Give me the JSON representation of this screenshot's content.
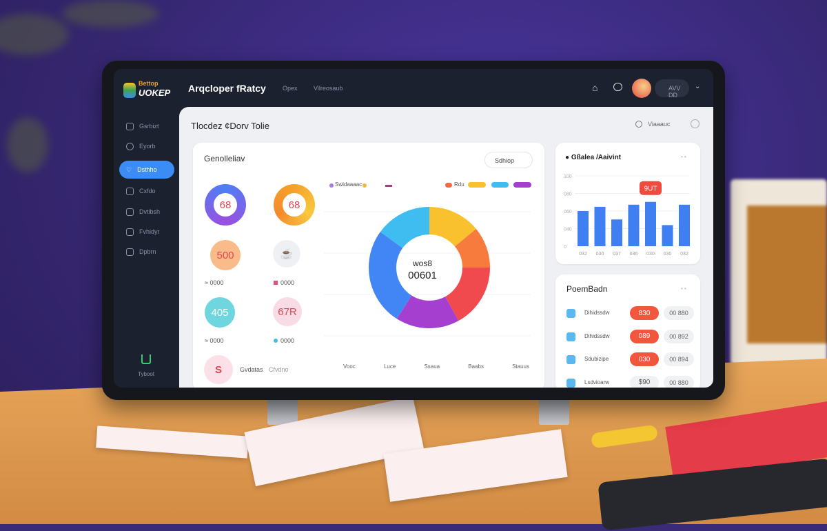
{
  "header": {
    "logo_top": "Bettop",
    "logo_bottom": "UOKEP",
    "title": "Arqcloper fRatcy",
    "nav": [
      "Opex",
      "Vilreosaub"
    ],
    "user_label": "AVV  DD"
  },
  "sidebar": {
    "items": [
      {
        "label": "Gsrbizt",
        "icon": "list-icon"
      },
      {
        "label": "Eyorb",
        "icon": "globe-icon"
      },
      {
        "label": "Dsthho",
        "icon": "heart-icon",
        "active": true
      },
      {
        "label": "Cxfdo",
        "icon": "cart-icon"
      },
      {
        "label": "Dvtibsh",
        "icon": "folder-icon"
      },
      {
        "label": "Fvhidyr",
        "icon": "image-icon"
      },
      {
        "label": "Dpbrn",
        "icon": "file-icon"
      }
    ],
    "bottom_label": "Tyboot"
  },
  "page": {
    "title": "Tlocdez ¢Dorv Tolie",
    "filter_label": "Viaaauc"
  },
  "overview": {
    "title": "Genolleliav",
    "filter_button": "Sdhiop",
    "stats": [
      {
        "value": "68"
      },
      {
        "value": "68"
      },
      {
        "value": "500",
        "caption": "≈ 0000"
      },
      {
        "value": "",
        "caption": "0000"
      },
      {
        "value": "405",
        "caption": "≈ 0000"
      },
      {
        "value": "67R",
        "caption": "0000"
      },
      {
        "value": "S"
      }
    ],
    "bottom_texts": [
      "Gvdatas",
      "Cfvdno"
    ],
    "legend": [
      "Swidaaaac",
      "Rdu"
    ],
    "donut_center_top": "wos8",
    "donut_center_value": "00601",
    "footer_items": [
      "Vooc",
      "Luce",
      "Ssaua",
      "Baabs",
      "Stauus"
    ]
  },
  "colors": {
    "accent": "#3b8cf5",
    "blue": "#4285f4",
    "lightblue": "#3fbdf0",
    "yellow": "#f9c12e",
    "orange": "#f67b3c",
    "red": "#f04a4f",
    "purple": "#a53fd0"
  },
  "chart_data": [
    {
      "type": "pie",
      "variant": "donut",
      "values": [
        14,
        11,
        17,
        17,
        26,
        15
      ],
      "colors": [
        "#f9c12e",
        "#f67b3c",
        "#f04a4f",
        "#a53fd0",
        "#4285f4",
        "#3fbdf0"
      ]
    },
    {
      "type": "bar",
      "title": "Gßalea /Aaivint",
      "categories": [
        "032",
        "030",
        "037",
        "036",
        "030",
        "030",
        "032"
      ],
      "values": [
        50,
        56,
        38,
        59,
        63,
        30,
        59
      ],
      "ylim": [
        0,
        100
      ],
      "yticks": [
        "100",
        "080",
        "060",
        "040",
        "0"
      ],
      "highlight_index": 4,
      "highlight_label": "9UT",
      "grid": true
    }
  ],
  "ranking": {
    "title": "PoemBadn",
    "rows": [
      {
        "name": "Dihidssdw",
        "badge": "830",
        "value": "00 880",
        "hot": true
      },
      {
        "name": "Dihidssdw",
        "badge": "089",
        "value": "00 892",
        "hot": true
      },
      {
        "name": "Sdubizipe",
        "badge": "030",
        "value": "00 894",
        "hot": true
      },
      {
        "name": "Lsdvioarw",
        "badge": "$90",
        "value": "00 880",
        "hot": false
      }
    ]
  }
}
